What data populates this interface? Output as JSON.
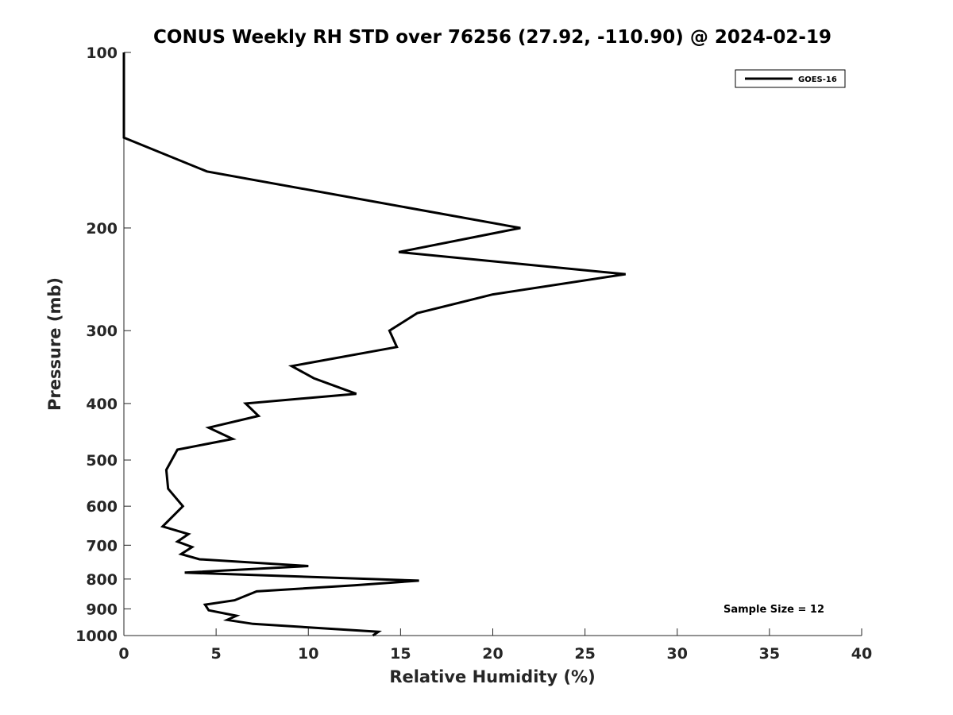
{
  "chart_data": {
    "type": "line",
    "title": "CONUS Weekly RH STD over 76256 (27.92, -110.90) @ 2024-02-19",
    "xlabel": "Relative Humidity (%)",
    "ylabel": "Pressure (mb)",
    "xlim": [
      0,
      40
    ],
    "ylim": [
      100,
      1000
    ],
    "y_scale": "log",
    "y_reversed": true,
    "x_ticks": [
      0,
      5,
      10,
      15,
      20,
      25,
      30,
      35,
      40
    ],
    "x_tick_labels": [
      "0",
      "5",
      "10",
      "15",
      "20",
      "25",
      "30",
      "35",
      "40"
    ],
    "y_ticks": [
      100,
      200,
      300,
      400,
      500,
      600,
      700,
      800,
      900,
      1000
    ],
    "y_tick_labels": [
      "100",
      "200",
      "300",
      "400",
      "500",
      "600",
      "700",
      "800",
      "900",
      "1000"
    ],
    "grid": false,
    "legend": {
      "position": "top-right",
      "entries": [
        "GOES-16"
      ]
    },
    "annotation": "Sample Size = 12",
    "line_color": "#000000",
    "series": [
      {
        "name": "GOES-16",
        "points": [
          [
            0.0,
            100
          ],
          [
            0.0,
            140
          ],
          [
            4.5,
            160
          ],
          [
            21.5,
            200
          ],
          [
            14.9,
            220
          ],
          [
            27.2,
            240
          ],
          [
            20.0,
            260
          ],
          [
            15.9,
            280
          ],
          [
            14.4,
            300
          ],
          [
            14.8,
            320
          ],
          [
            9.1,
            345
          ],
          [
            10.3,
            362
          ],
          [
            12.6,
            385
          ],
          [
            6.6,
            400
          ],
          [
            7.3,
            420
          ],
          [
            4.6,
            440
          ],
          [
            5.9,
            460
          ],
          [
            2.9,
            480
          ],
          [
            2.3,
            520
          ],
          [
            2.4,
            560
          ],
          [
            3.2,
            600
          ],
          [
            2.1,
            650
          ],
          [
            3.5,
            670
          ],
          [
            2.9,
            690
          ],
          [
            3.7,
            705
          ],
          [
            3.1,
            725
          ],
          [
            4.1,
            740
          ],
          [
            10.0,
            760
          ],
          [
            3.3,
            780
          ],
          [
            16.0,
            805
          ],
          [
            12.5,
            820
          ],
          [
            7.2,
            840
          ],
          [
            6.0,
            870
          ],
          [
            4.4,
            885
          ],
          [
            4.6,
            905
          ],
          [
            6.1,
            925
          ],
          [
            5.6,
            940
          ],
          [
            7.0,
            955
          ],
          [
            13.8,
            985
          ],
          [
            13.5,
            1000
          ]
        ]
      }
    ]
  }
}
